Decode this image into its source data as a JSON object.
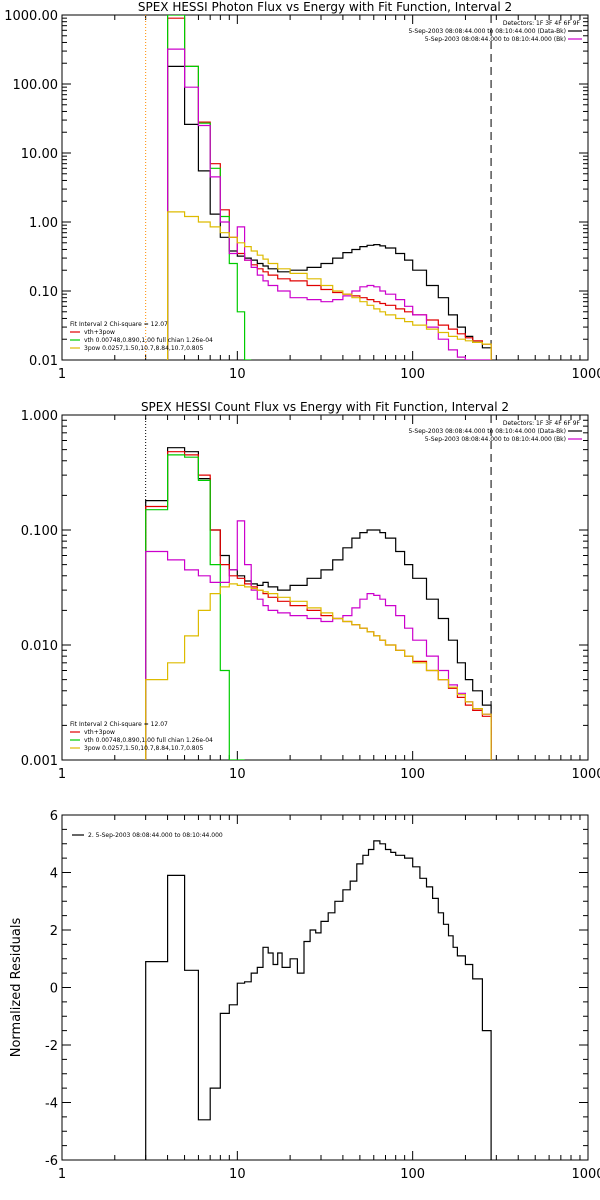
{
  "chart_data": [
    {
      "type": "line",
      "title": "SPEX HESSI Photon Flux vs Energy with Fit Function, Interval 2",
      "xlabel": "",
      "ylabel": "",
      "xscale": "log",
      "yscale": "log",
      "xlim": [
        1,
        1000
      ],
      "ylim": [
        0.01,
        1000
      ],
      "xticks": [
        1,
        10,
        100,
        1000
      ],
      "xtick_labels": [
        "1",
        "10",
        "100",
        "1000"
      ],
      "yticks": [
        0.01,
        0.1,
        1,
        10,
        100,
        1000
      ],
      "ytick_labels": [
        "0.01",
        "0.10",
        "1.00",
        "10.00",
        "100.00",
        "1000.00"
      ],
      "grid": false,
      "vlines": [
        {
          "x": 3,
          "style": "dotted",
          "color": "#ff8c00"
        },
        {
          "x": 280,
          "style": "dashed",
          "color": "#000000"
        }
      ],
      "legend_top_right": {
        "detectors": "Detectors: 1F 3F 4F 6F 9F",
        "entries": [
          {
            "label": "5-Sep-2003 08:08:44.000 to 08:10:44.000 (Data-Bk)",
            "color": "#000000"
          },
          {
            "label": "5-Sep-2003 08:08:44.000 to 08:10:44.000 (Bk)",
            "color": "#cc00cc"
          }
        ]
      },
      "legend_bottom_left": {
        "header": "Fit Interval 2   Chi-square = 12.07",
        "entries": [
          {
            "label": "vth+3pow",
            "color": "#e00000"
          },
          {
            "label": "vth 0.00748,0.890,1.00   full chian 1.26e-04",
            "color": "#00cc00"
          },
          {
            "label": "3pow 0.0257,1.50,10.7,8.84,10.7,0.805",
            "color": "#ddbb00"
          }
        ]
      },
      "x": [
        3,
        4,
        5,
        6,
        7,
        8,
        9,
        10,
        11,
        12,
        13,
        14,
        15,
        17,
        20,
        25,
        30,
        35,
        40,
        45,
        50,
        55,
        60,
        65,
        70,
        80,
        90,
        100,
        120,
        140,
        160,
        180,
        200,
        220,
        250,
        280
      ],
      "series": [
        {
          "color": "#000000",
          "values": [
            null,
            180,
            26,
            5.5,
            1.3,
            0.6,
            0.38,
            0.32,
            0.3,
            0.28,
            0.25,
            0.23,
            0.21,
            0.19,
            0.2,
            0.22,
            0.25,
            0.3,
            0.36,
            0.4,
            0.44,
            0.46,
            0.47,
            0.45,
            0.42,
            0.35,
            0.28,
            0.2,
            0.12,
            0.08,
            0.045,
            0.03,
            0.022,
            0.018,
            0.015,
            null
          ]
        },
        {
          "color": "#e00000",
          "values": [
            null,
            900,
            180,
            28,
            7,
            1.5,
            0.6,
            0.35,
            0.28,
            0.24,
            0.21,
            0.19,
            0.17,
            0.15,
            0.14,
            0.12,
            0.105,
            0.095,
            0.09,
            0.085,
            0.08,
            0.075,
            0.07,
            0.066,
            0.062,
            0.055,
            0.05,
            0.045,
            0.038,
            0.032,
            0.028,
            0.024,
            0.021,
            0.019,
            0.017,
            null
          ]
        },
        {
          "color": "#00cc00",
          "values": [
            null,
            1000,
            180,
            27,
            6,
            1.2,
            0.25,
            0.05,
            0.008,
            null,
            null,
            null,
            null,
            null,
            null,
            null,
            null,
            null,
            null,
            null,
            null,
            null,
            null,
            null,
            null,
            null,
            null,
            null,
            null,
            null,
            null,
            null,
            null,
            null,
            null,
            null
          ]
        },
        {
          "color": "#cc00cc",
          "values": [
            null,
            320,
            90,
            25,
            4.5,
            1.0,
            0.35,
            0.85,
            0.28,
            0.22,
            0.17,
            0.14,
            0.12,
            0.1,
            0.08,
            0.075,
            0.07,
            0.075,
            0.085,
            0.1,
            0.115,
            0.12,
            0.115,
            0.1,
            0.09,
            0.075,
            0.06,
            0.045,
            0.03,
            0.02,
            0.014,
            0.011,
            0.01,
            0.009,
            0.008,
            null
          ]
        },
        {
          "color": "#ddbb00",
          "values": [
            null,
            1.4,
            1.2,
            1.0,
            0.85,
            0.7,
            0.6,
            0.5,
            0.44,
            0.38,
            0.33,
            0.29,
            0.25,
            0.21,
            0.18,
            0.15,
            0.12,
            0.1,
            0.09,
            0.08,
            0.07,
            0.062,
            0.055,
            0.05,
            0.045,
            0.04,
            0.036,
            0.032,
            0.028,
            0.025,
            0.022,
            0.02,
            0.019,
            0.018,
            0.017,
            null
          ]
        }
      ]
    },
    {
      "type": "line",
      "title": "SPEX HESSI Count Flux vs Energy with Fit Function, Interval 2",
      "xlabel": "",
      "ylabel": "",
      "xscale": "log",
      "yscale": "log",
      "xlim": [
        1,
        1000
      ],
      "ylim": [
        0.001,
        1
      ],
      "xticks": [
        1,
        10,
        100,
        1000
      ],
      "xtick_labels": [
        "1",
        "10",
        "100",
        "1000"
      ],
      "yticks": [
        0.001,
        0.01,
        0.1,
        1
      ],
      "ytick_labels": [
        "0.001",
        "0.010",
        "0.100",
        "1.000"
      ],
      "grid": false,
      "vlines": [
        {
          "x": 3,
          "style": "dotted",
          "color": "#000000"
        },
        {
          "x": 280,
          "style": "dashed",
          "color": "#000000"
        }
      ],
      "legend_top_right": {
        "detectors": "Detectors: 1F 3F 4F 6F 9F",
        "entries": [
          {
            "label": "5-Sep-2003 08:08:44.000 to 08:10:44.000 (Data-Bk)",
            "color": "#000000"
          },
          {
            "label": "5-Sep-2003 08:08:44.000 to 08:10:44.000 (Bk)",
            "color": "#cc00cc"
          }
        ]
      },
      "legend_bottom_left": {
        "header": "Fit Interval 2   Chi-square = 12.07",
        "entries": [
          {
            "label": "vth+3pow",
            "color": "#e00000"
          },
          {
            "label": "vth 0.00748,0.890,1.00   full chian 1.26e-04",
            "color": "#00cc00"
          },
          {
            "label": "3pow 0.0257,1.50,10.7,8.84,10.7,0.805",
            "color": "#ddbb00"
          }
        ]
      },
      "x": [
        3,
        4,
        5,
        6,
        7,
        8,
        9,
        10,
        11,
        12,
        13,
        14,
        15,
        17,
        20,
        25,
        30,
        35,
        40,
        45,
        50,
        55,
        60,
        65,
        70,
        80,
        90,
        100,
        120,
        140,
        160,
        180,
        200,
        220,
        250,
        280
      ],
      "series": [
        {
          "color": "#000000",
          "values": [
            0.18,
            0.52,
            0.48,
            0.28,
            0.1,
            0.06,
            0.045,
            0.04,
            0.036,
            0.034,
            0.033,
            0.035,
            0.032,
            0.03,
            0.033,
            0.038,
            0.045,
            0.055,
            0.07,
            0.085,
            0.095,
            0.1,
            0.1,
            0.095,
            0.085,
            0.065,
            0.05,
            0.038,
            0.025,
            0.017,
            0.011,
            0.007,
            0.005,
            0.004,
            0.003,
            null
          ]
        },
        {
          "color": "#e00000",
          "values": [
            0.16,
            0.48,
            0.45,
            0.3,
            0.1,
            0.05,
            0.04,
            0.038,
            0.034,
            0.032,
            0.03,
            0.028,
            0.026,
            0.024,
            0.022,
            0.02,
            0.018,
            0.017,
            0.016,
            0.015,
            0.014,
            0.013,
            0.012,
            0.011,
            0.01,
            0.009,
            0.008,
            0.0072,
            0.006,
            0.005,
            0.0042,
            0.0035,
            0.003,
            0.0027,
            0.0024,
            null
          ]
        },
        {
          "color": "#00cc00",
          "values": [
            0.15,
            0.45,
            0.43,
            0.27,
            0.05,
            0.006,
            0.001,
            0.0002,
            null,
            null,
            null,
            null,
            null,
            null,
            null,
            null,
            null,
            null,
            null,
            null,
            null,
            null,
            null,
            null,
            null,
            null,
            null,
            null,
            null,
            null,
            null,
            null,
            null,
            null,
            null,
            null
          ]
        },
        {
          "color": "#cc00cc",
          "values": [
            0.065,
            0.055,
            0.045,
            0.04,
            0.035,
            0.035,
            0.045,
            0.12,
            0.05,
            0.03,
            0.025,
            0.022,
            0.02,
            0.019,
            0.018,
            0.017,
            0.016,
            0.017,
            0.018,
            0.021,
            0.025,
            0.028,
            0.027,
            0.025,
            0.022,
            0.018,
            0.014,
            0.011,
            0.008,
            0.006,
            0.0045,
            0.0038,
            0.0032,
            0.0028,
            0.0025,
            null
          ]
        },
        {
          "color": "#ddbb00",
          "values": [
            0.005,
            0.007,
            0.012,
            0.02,
            0.028,
            0.032,
            0.034,
            0.033,
            0.032,
            0.031,
            0.03,
            0.029,
            0.028,
            0.026,
            0.024,
            0.021,
            0.019,
            0.017,
            0.016,
            0.015,
            0.014,
            0.013,
            0.012,
            0.011,
            0.01,
            0.009,
            0.008,
            0.007,
            0.006,
            0.005,
            0.0043,
            0.0037,
            0.0032,
            0.0028,
            0.0025,
            null
          ]
        }
      ]
    },
    {
      "type": "line",
      "title": "",
      "xlabel": "",
      "ylabel": "Normalized Residuals",
      "xscale": "log",
      "yscale": "linear",
      "xlim": [
        1,
        1000
      ],
      "ylim": [
        -6,
        6
      ],
      "xticks": [
        1,
        10,
        100,
        1000
      ],
      "xtick_labels": [
        "1",
        "10",
        "100",
        "1000"
      ],
      "yticks": [
        -6,
        -4,
        -2,
        0,
        2,
        4,
        6
      ],
      "ytick_labels": [
        "-6",
        "-4",
        "-2",
        "0",
        "2",
        "4",
        "6"
      ],
      "grid": false,
      "legend_top_left": {
        "entries": [
          {
            "label": "2.  5-Sep-2003 08:08:44.000 to 08:10:44.000",
            "color": "#000000"
          }
        ]
      },
      "x": [
        3,
        4,
        5,
        6,
        7,
        8,
        9,
        10,
        11,
        12,
        13,
        14,
        15,
        16,
        17,
        18,
        20,
        22,
        24,
        26,
        28,
        30,
        33,
        36,
        40,
        44,
        48,
        52,
        56,
        60,
        65,
        70,
        75,
        80,
        90,
        100,
        110,
        120,
        130,
        140,
        150,
        160,
        170,
        180,
        200,
        220,
        250,
        280
      ],
      "values": [
        0.9,
        3.9,
        0.6,
        -4.6,
        -3.5,
        -0.9,
        -0.6,
        0.15,
        0.2,
        0.5,
        0.7,
        1.4,
        1.2,
        0.8,
        1.2,
        0.7,
        1.0,
        0.5,
        1.6,
        2.0,
        1.9,
        2.3,
        2.6,
        3.0,
        3.4,
        3.7,
        4.3,
        4.6,
        4.8,
        5.1,
        5.0,
        4.8,
        4.7,
        4.6,
        4.5,
        4.2,
        3.8,
        3.5,
        3.1,
        2.6,
        2.2,
        1.8,
        1.4,
        1.1,
        0.8,
        0.3,
        -1.5,
        null
      ]
    }
  ]
}
